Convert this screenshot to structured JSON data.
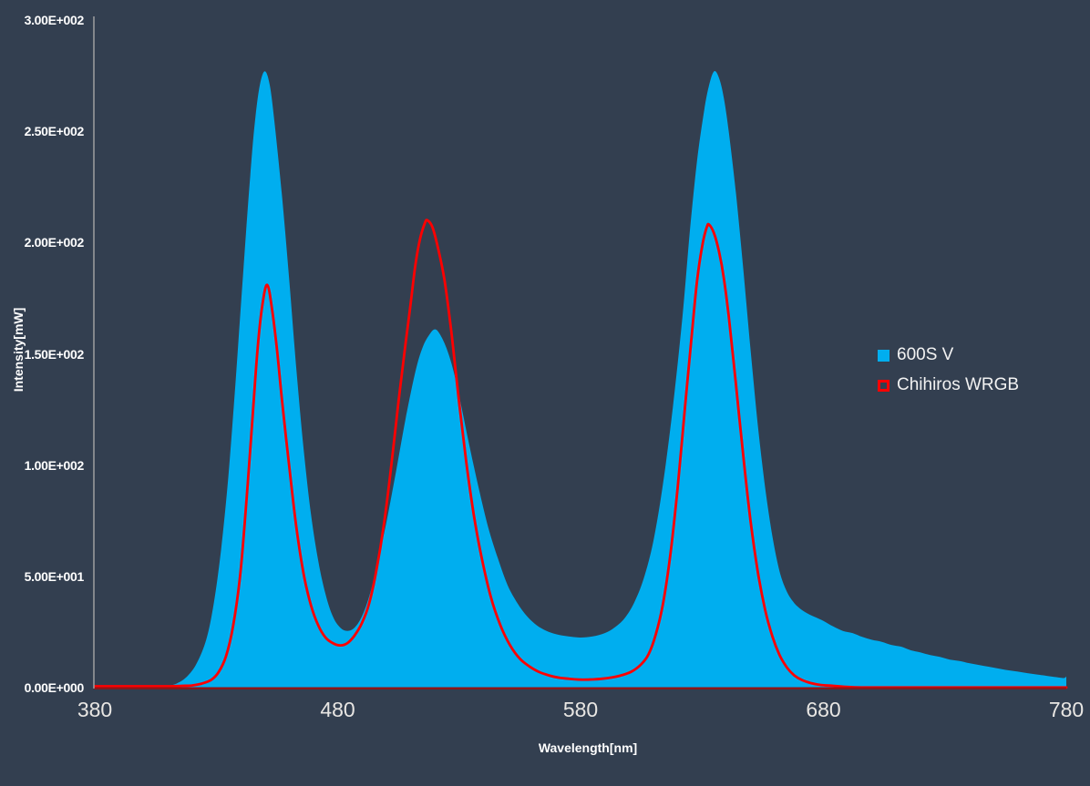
{
  "colors": {
    "background": "#333F50",
    "axis_line": "#A6A6A6",
    "baseline": "#8E1518",
    "y_tick_text": "#FFFFFF",
    "x_tick_text": "#E8E6E3",
    "title_text": "#FFFFFF",
    "legend_text": "#F2F2F2"
  },
  "chart_data": {
    "type": "area",
    "title": "",
    "xlabel": "Wavelength[nm]",
    "ylabel": "Intensity[mW]",
    "xlim": [
      380,
      780
    ],
    "ylim": [
      0,
      300
    ],
    "grid": false,
    "legend_position": "right",
    "x_ticks": [
      380,
      480,
      580,
      680,
      780
    ],
    "y_ticks": [
      {
        "value": 0,
        "label": "0.00E+000"
      },
      {
        "value": 50,
        "label": "5.00E+001"
      },
      {
        "value": 100,
        "label": "1.00E+002"
      },
      {
        "value": 150,
        "label": "1.50E+002"
      },
      {
        "value": 200,
        "label": "2.00E+002"
      },
      {
        "value": 250,
        "label": "2.50E+002"
      },
      {
        "value": 300,
        "label": "3.00E+002"
      }
    ],
    "legend": [
      {
        "label": "600S V",
        "marker": "filled-square",
        "color": "#00AEEF"
      },
      {
        "label": "Chihiros WRGB",
        "marker": "outlined-square",
        "color": "#FF0000"
      }
    ],
    "series": [
      {
        "name": "600S V",
        "type": "area",
        "color": "#00AEEF",
        "peaks": [
          {
            "x": 450,
            "y": 277
          },
          {
            "x": 520,
            "y": 161
          },
          {
            "x": 635,
            "y": 277
          }
        ],
        "points": [
          [
            380,
            0
          ],
          [
            396,
            0
          ],
          [
            404,
            0.2
          ],
          [
            410,
            0.8
          ],
          [
            414,
            2
          ],
          [
            418,
            5
          ],
          [
            422,
            11
          ],
          [
            426,
            22
          ],
          [
            429,
            38
          ],
          [
            432,
            62
          ],
          [
            435,
            95
          ],
          [
            438,
            138
          ],
          [
            441,
            185
          ],
          [
            444,
            230
          ],
          [
            446,
            255
          ],
          [
            448,
            271
          ],
          [
            450,
            277
          ],
          [
            452,
            271
          ],
          [
            454,
            254
          ],
          [
            457,
            222
          ],
          [
            460,
            184
          ],
          [
            463,
            143
          ],
          [
            466,
            107
          ],
          [
            469,
            78
          ],
          [
            472,
            57
          ],
          [
            475,
            42
          ],
          [
            478,
            32
          ],
          [
            481,
            27
          ],
          [
            484,
            25.5
          ],
          [
            487,
            27
          ],
          [
            490,
            32
          ],
          [
            493,
            41
          ],
          [
            496,
            54
          ],
          [
            500,
            74
          ],
          [
            504,
            97
          ],
          [
            508,
            121
          ],
          [
            512,
            142
          ],
          [
            515,
            153
          ],
          [
            518,
            159
          ],
          [
            520,
            161
          ],
          [
            522,
            159
          ],
          [
            525,
            152
          ],
          [
            528,
            141
          ],
          [
            531,
            126
          ],
          [
            534,
            110
          ],
          [
            538,
            90
          ],
          [
            542,
            72
          ],
          [
            546,
            58
          ],
          [
            550,
            46
          ],
          [
            554,
            38
          ],
          [
            558,
            32
          ],
          [
            562,
            28
          ],
          [
            566,
            25.5
          ],
          [
            570,
            24
          ],
          [
            575,
            23
          ],
          [
            580,
            22.5
          ],
          [
            585,
            23
          ],
          [
            590,
            24.5
          ],
          [
            594,
            27
          ],
          [
            598,
            31
          ],
          [
            602,
            38
          ],
          [
            606,
            49
          ],
          [
            610,
            66
          ],
          [
            614,
            92
          ],
          [
            618,
            126
          ],
          [
            622,
            167
          ],
          [
            625,
            205
          ],
          [
            628,
            237
          ],
          [
            631,
            260
          ],
          [
            633,
            271
          ],
          [
            635,
            277
          ],
          [
            637,
            274
          ],
          [
            639,
            265
          ],
          [
            641,
            250
          ],
          [
            644,
            222
          ],
          [
            647,
            188
          ],
          [
            650,
            152
          ],
          [
            653,
            118
          ],
          [
            656,
            90
          ],
          [
            659,
            68
          ],
          [
            662,
            52
          ],
          [
            665,
            43
          ],
          [
            668,
            38
          ],
          [
            671,
            35
          ],
          [
            674,
            33
          ],
          [
            677,
            31.5
          ],
          [
            680,
            30
          ],
          [
            684,
            27.5
          ],
          [
            688,
            25.5
          ],
          [
            692,
            24.5
          ],
          [
            696,
            22.8
          ],
          [
            700,
            21.5
          ],
          [
            704,
            20.6
          ],
          [
            708,
            19.2
          ],
          [
            712,
            18.4
          ],
          [
            716,
            16.8
          ],
          [
            720,
            15.8
          ],
          [
            724,
            14.6
          ],
          [
            728,
            13.8
          ],
          [
            732,
            12.6
          ],
          [
            736,
            12
          ],
          [
            740,
            11
          ],
          [
            744,
            10.2
          ],
          [
            748,
            9.4
          ],
          [
            752,
            8.6
          ],
          [
            756,
            7.8
          ],
          [
            760,
            7.2
          ],
          [
            764,
            6.5
          ],
          [
            768,
            5.9
          ],
          [
            772,
            5.3
          ],
          [
            776,
            4.7
          ],
          [
            779,
            4.3
          ],
          [
            780,
            5
          ]
        ]
      },
      {
        "name": "Chihiros WRGB",
        "type": "line",
        "color": "#FF0000",
        "line_width": 2.8,
        "peaks": [
          {
            "x": 451,
            "y": 181
          },
          {
            "x": 517,
            "y": 210
          },
          {
            "x": 633,
            "y": 208
          }
        ],
        "points": [
          [
            380,
            0.6
          ],
          [
            400,
            0.6
          ],
          [
            410,
            0.6
          ],
          [
            416,
            0.8
          ],
          [
            420,
            1
          ],
          [
            424,
            1.8
          ],
          [
            428,
            3.5
          ],
          [
            431,
            7
          ],
          [
            434,
            14
          ],
          [
            437,
            28
          ],
          [
            440,
            52
          ],
          [
            443,
            92
          ],
          [
            445,
            122
          ],
          [
            447,
            152
          ],
          [
            449,
            172
          ],
          [
            451,
            181
          ],
          [
            453,
            170
          ],
          [
            455,
            152
          ],
          [
            457,
            130
          ],
          [
            460,
            100
          ],
          [
            463,
            72
          ],
          [
            466,
            51
          ],
          [
            469,
            37
          ],
          [
            472,
            28
          ],
          [
            475,
            22.5
          ],
          [
            478,
            20
          ],
          [
            481,
            19
          ],
          [
            484,
            20
          ],
          [
            487,
            23.5
          ],
          [
            490,
            29
          ],
          [
            493,
            38
          ],
          [
            496,
            53
          ],
          [
            499,
            73
          ],
          [
            502,
            99
          ],
          [
            505,
            128
          ],
          [
            508,
            155
          ],
          [
            510,
            172
          ],
          [
            512,
            190
          ],
          [
            514,
            202
          ],
          [
            516,
            209
          ],
          [
            517,
            210
          ],
          [
            519,
            207
          ],
          [
            521,
            199
          ],
          [
            524,
            183
          ],
          [
            527,
            158
          ],
          [
            530,
            128
          ],
          [
            533,
            101
          ],
          [
            536,
            78
          ],
          [
            539,
            60
          ],
          [
            543,
            41
          ],
          [
            547,
            28
          ],
          [
            551,
            19
          ],
          [
            555,
            13
          ],
          [
            559,
            9.5
          ],
          [
            563,
            7
          ],
          [
            567,
            5.5
          ],
          [
            571,
            4.5
          ],
          [
            575,
            4
          ],
          [
            580,
            3.6
          ],
          [
            585,
            3.7
          ],
          [
            589,
            4
          ],
          [
            593,
            4.6
          ],
          [
            597,
            5.6
          ],
          [
            601,
            7.2
          ],
          [
            605,
            10.5
          ],
          [
            608,
            15
          ],
          [
            611,
            24
          ],
          [
            614,
            38
          ],
          [
            617,
            60
          ],
          [
            620,
            90
          ],
          [
            623,
            126
          ],
          [
            626,
            161
          ],
          [
            628,
            183
          ],
          [
            630,
            198
          ],
          [
            632,
            207
          ],
          [
            633,
            208
          ],
          [
            635,
            204
          ],
          [
            637,
            196
          ],
          [
            639,
            184
          ],
          [
            641,
            167
          ],
          [
            644,
            136
          ],
          [
            647,
            104
          ],
          [
            650,
            75
          ],
          [
            653,
            52
          ],
          [
            656,
            35
          ],
          [
            659,
            23
          ],
          [
            662,
            14.5
          ],
          [
            665,
            9
          ],
          [
            668,
            5.5
          ],
          [
            671,
            3.5
          ],
          [
            675,
            2
          ],
          [
            679,
            1.2
          ],
          [
            684,
            0.8
          ],
          [
            692,
            0.2
          ],
          [
            700,
            0.1
          ],
          [
            720,
            0.1
          ],
          [
            750,
            0.1
          ],
          [
            780,
            0.1
          ]
        ]
      }
    ]
  }
}
